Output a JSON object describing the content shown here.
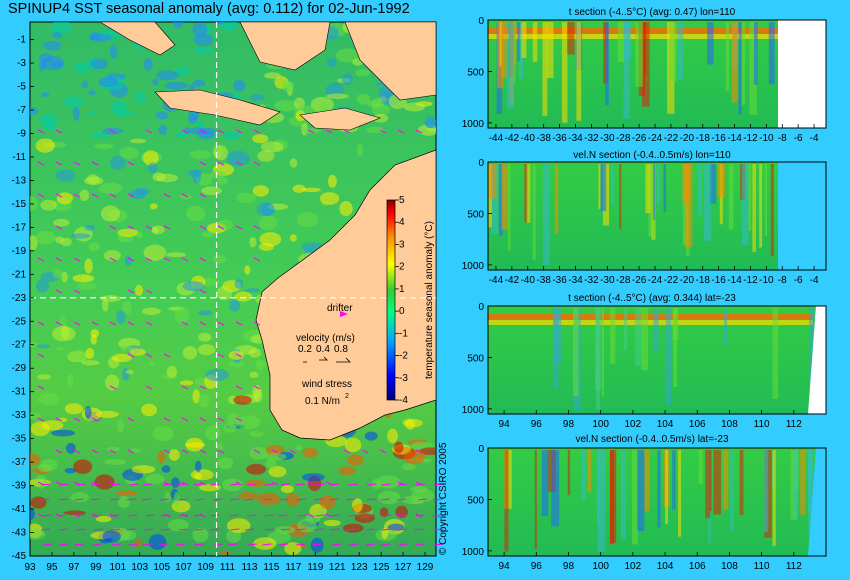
{
  "title": "SPINUP4 SST seasonal anomaly (avg: 0.112) for 02-Jun-1992",
  "copyright": "© Copyright CSIRO 2005",
  "colors": {
    "background": "#33ccff",
    "land": "#ffcc99",
    "drifter": "#ff00ff",
    "guide": "#ffffff"
  },
  "chart_data": [
    {
      "type": "heatmap",
      "panel": "map",
      "xticks": [
        93,
        95,
        97,
        99,
        101,
        103,
        105,
        107,
        109,
        111,
        113,
        115,
        117,
        119,
        121,
        123,
        125,
        127,
        129
      ],
      "yticks": [
        -1,
        -3,
        -5,
        -7,
        -9,
        -11,
        -13,
        -15,
        -17,
        -19,
        -21,
        -23,
        -25,
        -27,
        -29,
        -31,
        -33,
        -35,
        -37,
        -39,
        -41,
        -43,
        -45
      ],
      "xlim": [
        93,
        130
      ],
      "ylim": [
        -45,
        0.5
      ],
      "guides": {
        "lon": 110,
        "lat": -23
      },
      "colorbar": {
        "label": "temperature seasonal anomaly (°C)",
        "ticks": [
          5,
          4,
          3,
          2,
          1,
          0,
          -1,
          -2,
          -3,
          -4
        ],
        "range": [
          -4,
          5
        ]
      },
      "legend": {
        "drifter": "drifter",
        "velocity_title": "velocity (m/s)",
        "velocity_scales": [
          "0.2",
          "0.4",
          "0.8"
        ],
        "wind_title": "wind stress",
        "wind_scale": "0.1 N/m"
      }
    },
    {
      "type": "heatmap",
      "panel": "t-lon",
      "title": "t section (-4..5°C) (avg: 0.47) lon=110",
      "xticks": [
        -44,
        -42,
        -40,
        -38,
        -36,
        -34,
        -32,
        -30,
        -28,
        -26,
        -24,
        -22,
        -20,
        -18,
        -16,
        -14,
        -12,
        -10,
        -8,
        -6,
        -4
      ],
      "xlim": [
        -45,
        -2.5
      ],
      "yticks": [
        0,
        500,
        1000
      ],
      "ylim": [
        0,
        1050
      ]
    },
    {
      "type": "heatmap",
      "panel": "v-lon",
      "title": "vel.N section (-0.4..0.5m/s) lon=110",
      "xticks": [
        -44,
        -42,
        -40,
        -38,
        -36,
        -34,
        -32,
        -30,
        -28,
        -26,
        -24,
        -22,
        -20,
        -18,
        -16,
        -14,
        -12,
        -10,
        -8,
        -6,
        -4
      ],
      "xlim": [
        -45,
        -2.5
      ],
      "yticks": [
        0,
        500,
        1000
      ],
      "ylim": [
        0,
        1050
      ]
    },
    {
      "type": "heatmap",
      "panel": "t-lat",
      "title": "t section (-4..5°C) (avg: 0.344) lat=-23",
      "xticks": [
        94,
        96,
        98,
        100,
        102,
        104,
        106,
        108,
        110,
        112
      ],
      "xlim": [
        93,
        114
      ],
      "yticks": [
        0,
        500,
        1000
      ],
      "ylim": [
        0,
        1050
      ]
    },
    {
      "type": "heatmap",
      "panel": "v-lat",
      "title": "vel.N section (-0.4..0.5m/s) lat=-23",
      "xticks": [
        94,
        96,
        98,
        100,
        102,
        104,
        106,
        108,
        110,
        112
      ],
      "xlim": [
        93,
        114
      ],
      "yticks": [
        0,
        500,
        1000
      ],
      "ylim": [
        0,
        1050
      ]
    }
  ]
}
